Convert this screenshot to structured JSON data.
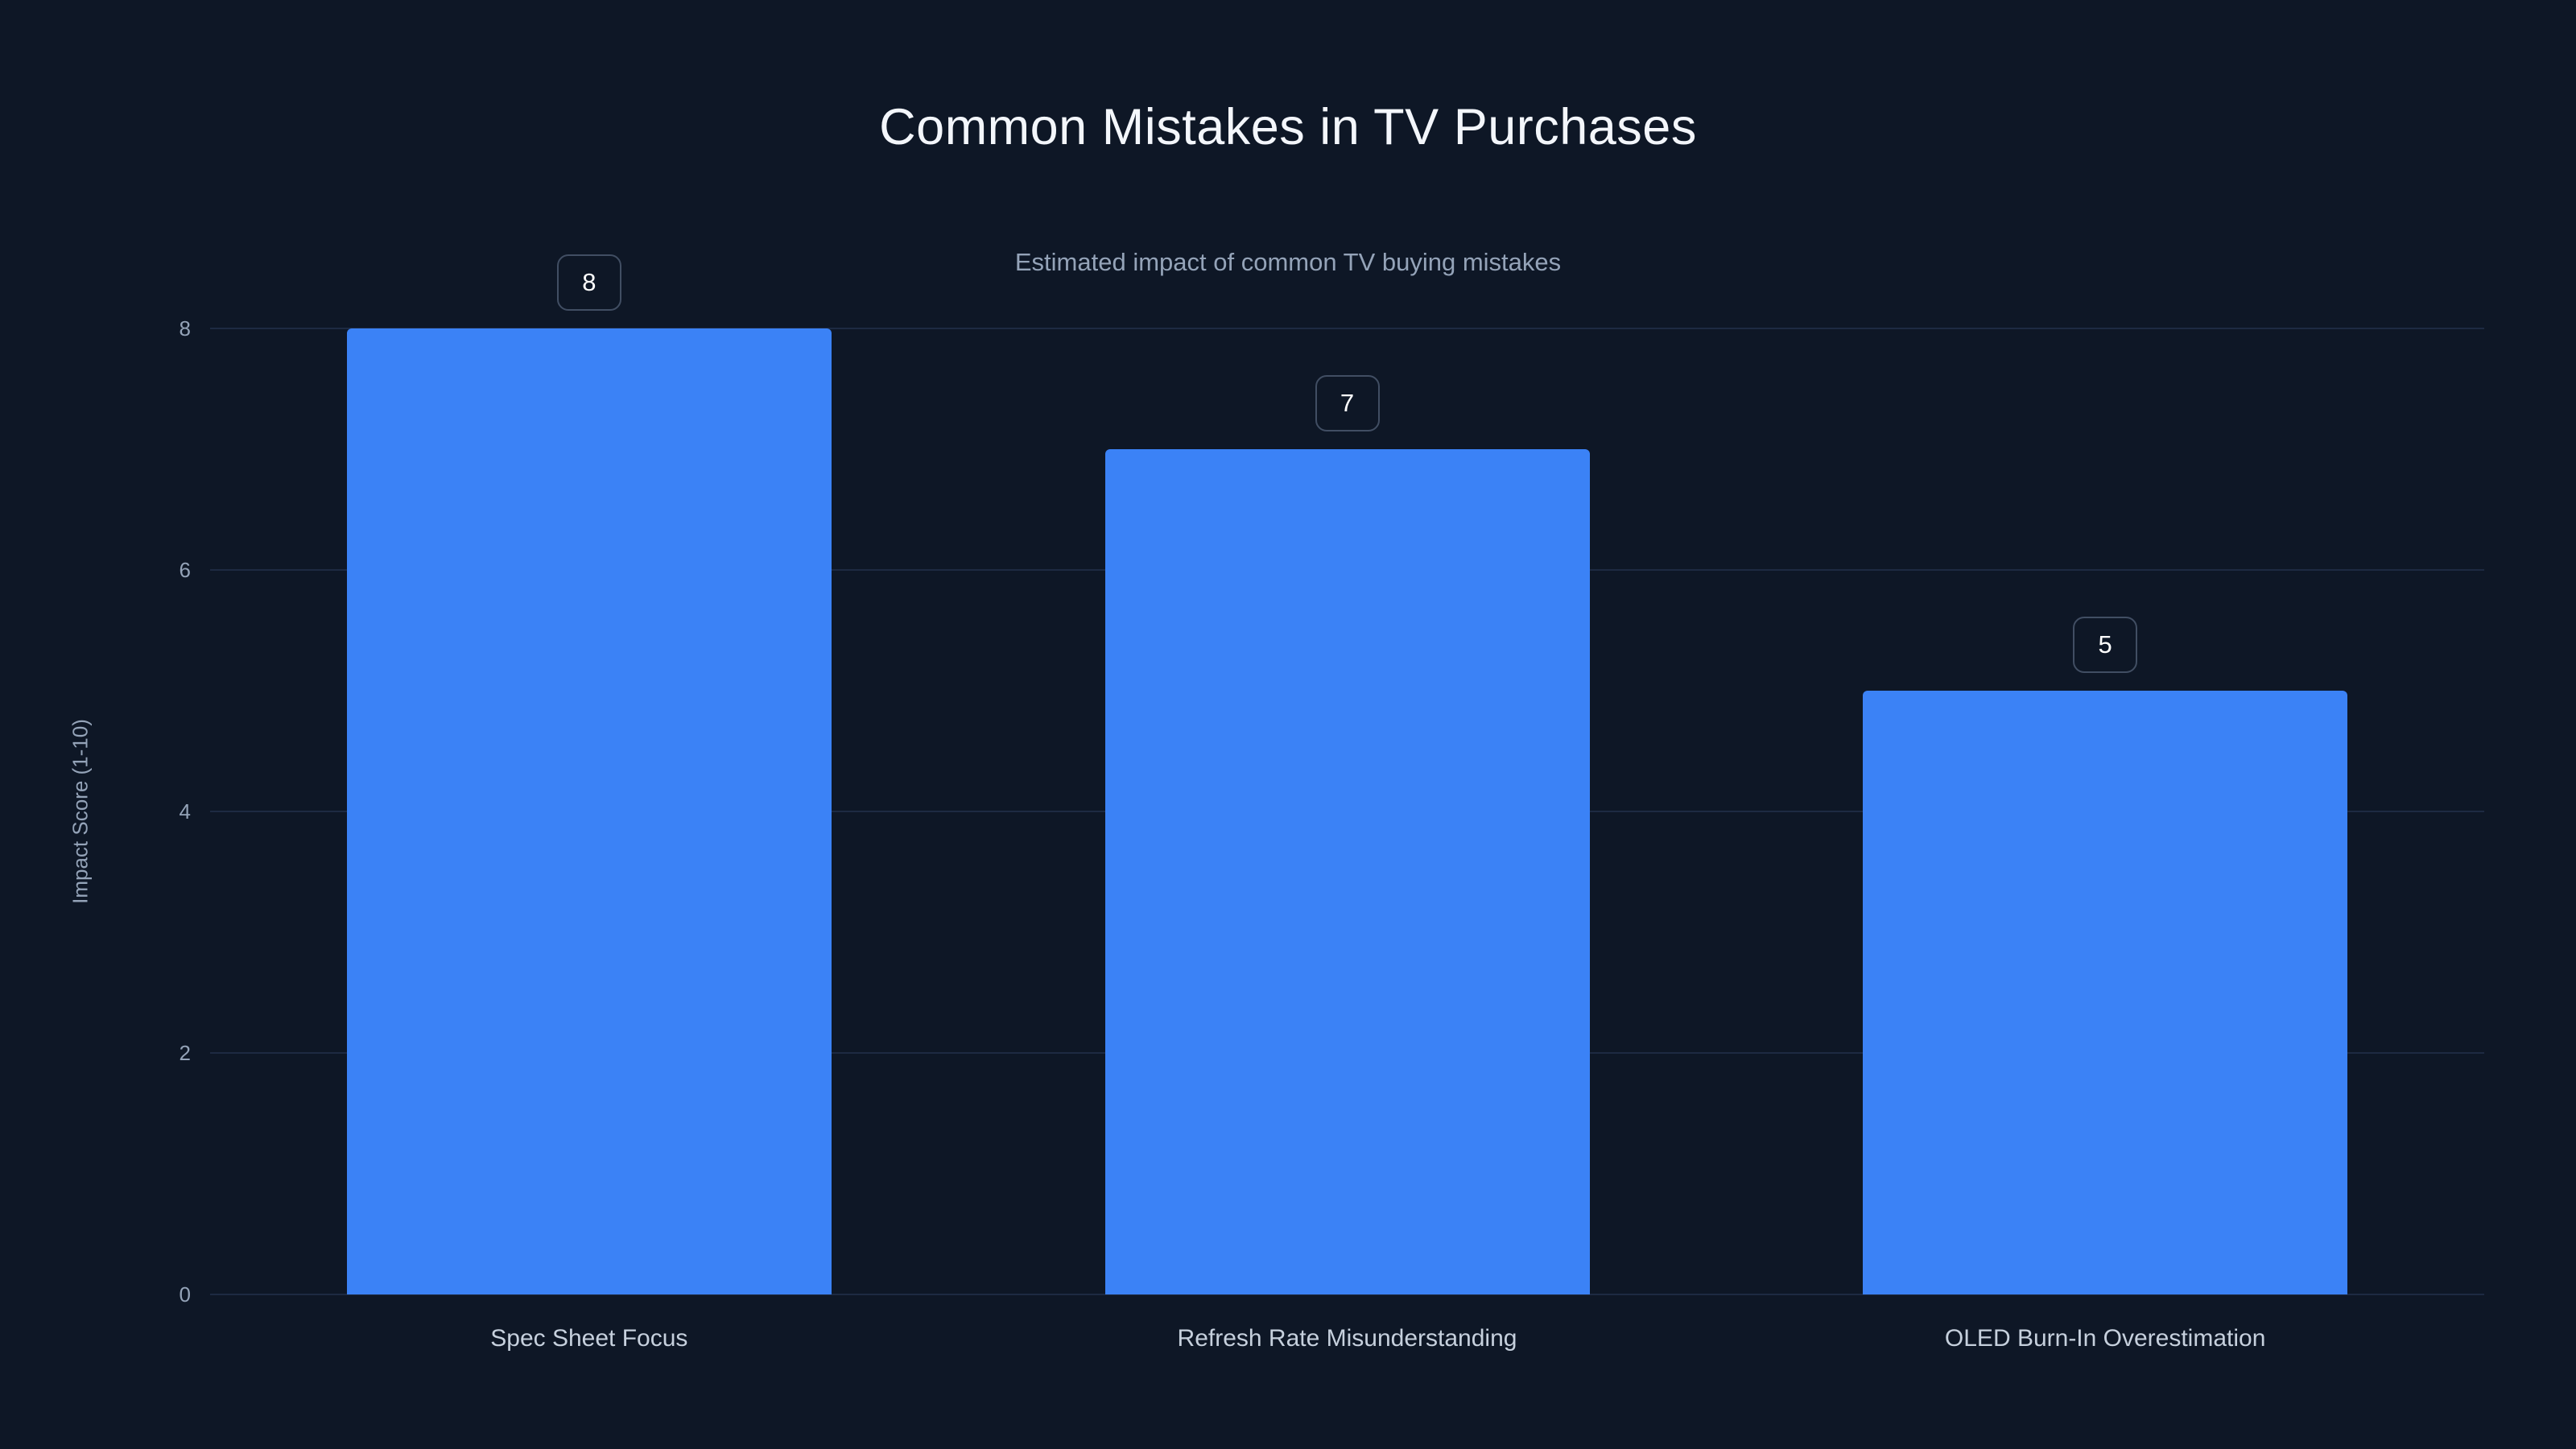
{
  "chart_data": {
    "type": "bar",
    "title": "Common Mistakes in TV Purchases",
    "subtitle": "Estimated impact of common TV buying mistakes",
    "categories": [
      "Spec Sheet Focus",
      "Refresh Rate Misunderstanding",
      "OLED Burn-In Overestimation"
    ],
    "values": [
      8,
      7,
      5
    ],
    "data_labels": [
      "8",
      "7",
      "5"
    ],
    "xlabel": "",
    "ylabel": "Impact Score (1-10)",
    "ylim": [
      0,
      8
    ],
    "yticks": [
      0,
      2,
      4,
      6,
      8
    ],
    "grid": true,
    "legend": false,
    "colors": {
      "bar": "#3b82f6",
      "background": "#0e1726",
      "title": "#f3f6fb",
      "subtitle": "#94a3b8",
      "tick_label": "#94a3b8",
      "category_label": "#c6d0dd",
      "gridline": "#1d2a42",
      "badge_border": "#414e63",
      "badge_text": "#ffffff"
    }
  }
}
